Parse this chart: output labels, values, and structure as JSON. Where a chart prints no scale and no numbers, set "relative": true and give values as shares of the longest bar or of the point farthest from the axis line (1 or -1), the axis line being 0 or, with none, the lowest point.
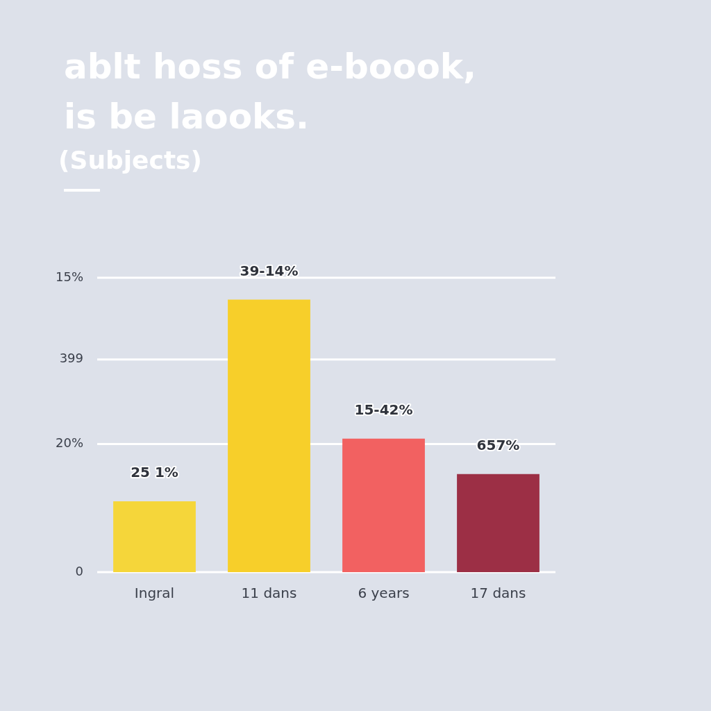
{
  "chart_data": {
    "type": "bar",
    "title": "ablt hoss of e-boook,\nis be laooks.",
    "subtitle": "(Subjects)",
    "relative": true,
    "categories": [
      "Ingral",
      "11 dans",
      "6 years",
      "17 dans"
    ],
    "values": [
      0.26,
      1,
      0.49,
      0.36
    ],
    "colors": [
      "#f5d63a",
      "#f7cf2a",
      "#f26161",
      "#9c2f45"
    ],
    "ref_lines": [
      {
        "axis": "y",
        "value": 0,
        "color": "#ffffff"
      },
      {
        "axis": "y",
        "value": 0.47,
        "color": "#ffffff"
      },
      {
        "axis": "y",
        "value": 0.78,
        "color": "#ffffff"
      },
      {
        "axis": "y",
        "value": 1.08,
        "color": "#ffffff"
      }
    ],
    "annotations": [
      {
        "text": "25 1%",
        "x": "Ingral",
        "y": 0.26
      },
      {
        "text": "39-14%",
        "x": "11 dans",
        "y": 1
      },
      {
        "text": "15-42%",
        "x": "6 years",
        "y": 0.49
      },
      {
        "text": "657%",
        "x": "17 dans",
        "y": 0.36
      },
      "0",
      "20%",
      "399",
      "15%"
    ],
    "legend": false
  }
}
